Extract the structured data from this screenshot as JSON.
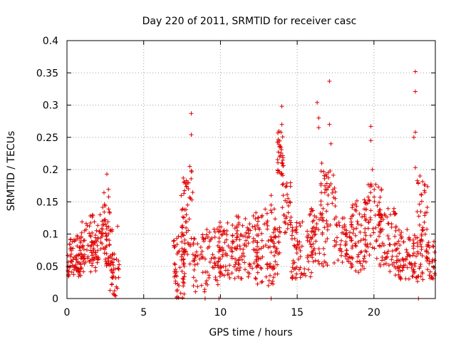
{
  "chart_data": {
    "type": "scatter",
    "title": "Day 220 of 2011, SRMTID for receiver casc",
    "xlabel": "GPS time / hours",
    "ylabel": "SRMTID / TECUs",
    "xlim": [
      0,
      24
    ],
    "ylim": [
      0,
      0.4
    ],
    "x_ticks": [
      "0",
      "5",
      "10",
      "15",
      "20"
    ],
    "y_ticks": [
      "0",
      "0.05",
      "0.1",
      "0.15",
      "0.2",
      "0.25",
      "0.3",
      "0.35",
      "0.4"
    ],
    "grid": true,
    "marker": "plus",
    "series_color": "#e00000",
    "series": [
      {
        "name": "SRMTID",
        "clusters": [
          {
            "x0": 0.0,
            "x1": 1.0,
            "ymin": 0.03,
            "ymax": 0.1,
            "n": 70
          },
          {
            "x0": 0.7,
            "x1": 2.0,
            "ymin": 0.04,
            "ymax": 0.12,
            "n": 60
          },
          {
            "x0": 1.5,
            "x1": 2.6,
            "ymin": 0.05,
            "ymax": 0.13,
            "n": 55
          },
          {
            "x0": 2.2,
            "x1": 2.8,
            "ymin": 0.1,
            "ymax": 0.17,
            "n": 22
          },
          {
            "x0": 2.5,
            "x1": 3.0,
            "ymin": 0.04,
            "ymax": 0.11,
            "n": 25
          },
          {
            "x0": 2.8,
            "x1": 3.4,
            "ymin": 0.0,
            "ymax": 0.07,
            "n": 35
          },
          {
            "x0": 6.9,
            "x1": 7.7,
            "ymin": 0.0,
            "ymax": 0.1,
            "n": 50
          },
          {
            "x0": 7.4,
            "x1": 8.3,
            "ymin": 0.05,
            "ymax": 0.2,
            "n": 60
          },
          {
            "x0": 8.2,
            "x1": 9.0,
            "ymin": 0.01,
            "ymax": 0.1,
            "n": 35
          },
          {
            "x0": 9.0,
            "x1": 10.0,
            "ymin": 0.02,
            "ymax": 0.11,
            "n": 50
          },
          {
            "x0": 9.9,
            "x1": 11.2,
            "ymin": 0.03,
            "ymax": 0.12,
            "n": 75
          },
          {
            "x0": 11.0,
            "x1": 12.5,
            "ymin": 0.03,
            "ymax": 0.13,
            "n": 80
          },
          {
            "x0": 12.3,
            "x1": 13.6,
            "ymin": 0.02,
            "ymax": 0.14,
            "n": 70
          },
          {
            "x0": 13.4,
            "x1": 13.9,
            "ymin": 0.03,
            "ymax": 0.11,
            "n": 25
          },
          {
            "x0": 13.7,
            "x1": 14.1,
            "ymin": 0.19,
            "ymax": 0.26,
            "n": 35
          },
          {
            "x0": 14.0,
            "x1": 14.6,
            "ymin": 0.1,
            "ymax": 0.18,
            "n": 30
          },
          {
            "x0": 14.5,
            "x1": 16.0,
            "ymin": 0.03,
            "ymax": 0.12,
            "n": 70
          },
          {
            "x0": 15.8,
            "x1": 17.0,
            "ymin": 0.05,
            "ymax": 0.14,
            "n": 60
          },
          {
            "x0": 16.5,
            "x1": 17.5,
            "ymin": 0.11,
            "ymax": 0.2,
            "n": 40
          },
          {
            "x0": 17.4,
            "x1": 18.6,
            "ymin": 0.05,
            "ymax": 0.13,
            "n": 60
          },
          {
            "x0": 18.5,
            "x1": 19.5,
            "ymin": 0.04,
            "ymax": 0.16,
            "n": 60
          },
          {
            "x0": 19.4,
            "x1": 20.5,
            "ymin": 0.06,
            "ymax": 0.18,
            "n": 60
          },
          {
            "x0": 20.3,
            "x1": 21.5,
            "ymin": 0.04,
            "ymax": 0.14,
            "n": 65
          },
          {
            "x0": 21.4,
            "x1": 22.6,
            "ymin": 0.03,
            "ymax": 0.11,
            "n": 65
          },
          {
            "x0": 22.5,
            "x1": 23.2,
            "ymin": 0.02,
            "ymax": 0.1,
            "n": 35
          },
          {
            "x0": 22.8,
            "x1": 23.5,
            "ymin": 0.08,
            "ymax": 0.19,
            "n": 35
          },
          {
            "x0": 23.4,
            "x1": 24.0,
            "ymin": 0.03,
            "ymax": 0.09,
            "n": 35
          }
        ],
        "points": [
          [
            2.6,
            0.193
          ],
          [
            8.1,
            0.287
          ],
          [
            8.1,
            0.254
          ],
          [
            8.0,
            0.205
          ],
          [
            8.1,
            0.198
          ],
          [
            14.0,
            0.298
          ],
          [
            14.0,
            0.27
          ],
          [
            16.3,
            0.304
          ],
          [
            16.4,
            0.28
          ],
          [
            16.4,
            0.265
          ],
          [
            17.1,
            0.337
          ],
          [
            17.1,
            0.27
          ],
          [
            17.2,
            0.24
          ],
          [
            16.6,
            0.21
          ],
          [
            19.8,
            0.267
          ],
          [
            19.8,
            0.245
          ],
          [
            19.9,
            0.2
          ],
          [
            22.7,
            0.352
          ],
          [
            22.7,
            0.321
          ],
          [
            22.7,
            0.258
          ],
          [
            22.6,
            0.25
          ],
          [
            22.7,
            0.203
          ],
          [
            23.0,
            0.19
          ],
          [
            13.3,
            0.16
          ],
          [
            13.3,
            0.145
          ],
          [
            9.0,
            0.0
          ],
          [
            9.9,
            0.0
          ],
          [
            13.3,
            0.0
          ],
          [
            22.9,
            0.0
          ],
          [
            3.3,
            0.112
          ]
        ]
      }
    ]
  }
}
